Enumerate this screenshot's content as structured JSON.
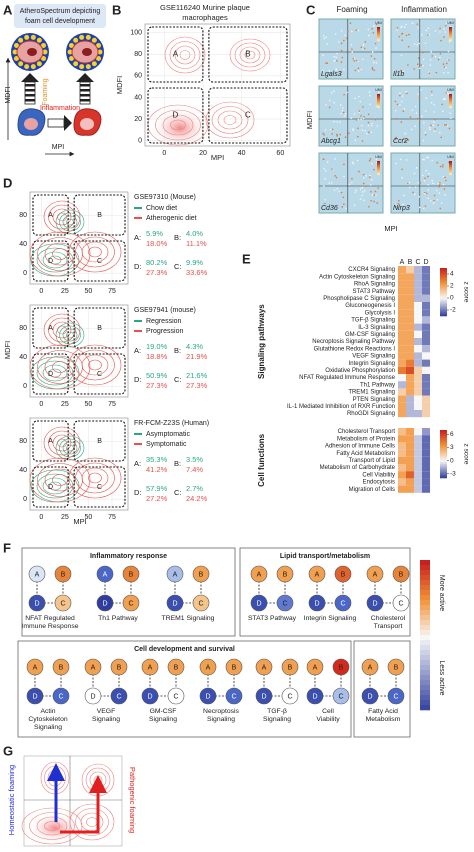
{
  "panel_labels": [
    "A",
    "B",
    "C",
    "D",
    "E",
    "F",
    "G"
  ],
  "a": {
    "title_lines": [
      "AtheroSpectrum depicting",
      "foam cell development"
    ],
    "foaming": "Foaming",
    "inflammation": "Inflammation",
    "y_label": "MDFI",
    "x_label": "MPI"
  },
  "b": {
    "title_lines": [
      "GSE116240 Murine plaque",
      "macrophages"
    ],
    "x_label": "MPI",
    "y_label": "MDFI",
    "xlim": [
      -10,
      65
    ],
    "ylim": [
      -5,
      108
    ],
    "xticks": [
      0,
      20,
      40,
      60
    ],
    "yticks": [
      0,
      20,
      40,
      60,
      80,
      100
    ],
    "quadrants": [
      "A",
      "B",
      "D",
      "C"
    ]
  },
  "c": {
    "columns": [
      "Foaming",
      "Inflammation"
    ],
    "genes": [
      [
        "Lgals3",
        "Il1b"
      ],
      [
        "Abcg1",
        "Ccr2"
      ],
      [
        "Cd36",
        "Nlrp3"
      ]
    ],
    "legend_title": "UMI",
    "y_label": "MDFI",
    "x_label": "MPI"
  },
  "d": {
    "y_label": "MDFI",
    "x_label": "MPI",
    "xlim": [
      -12,
      92
    ],
    "ylim": [
      -15,
      112
    ],
    "xticks": [
      0,
      25,
      50,
      75
    ],
    "yticks": [
      0,
      40,
      80
    ],
    "quadrants": [
      "A",
      "B",
      "D",
      "C"
    ],
    "datasets": [
      {
        "title": "GSE97310 (Mouse)",
        "groups": [
          {
            "name": "Chow diet",
            "color": "#2aa884"
          },
          {
            "name": "Atherogenic diet",
            "color": "#e8504a"
          }
        ],
        "stats": [
          {
            "label": "A:",
            "values": [
              "5.9%",
              "18.0%"
            ]
          },
          {
            "label": "B:",
            "values": [
              "4.0%",
              "11.1%"
            ]
          },
          {
            "label": "D:",
            "values": [
              "80.2%",
              "27.3%"
            ]
          },
          {
            "label": "C:",
            "values": [
              "9.9%",
              "33.6%"
            ]
          }
        ]
      },
      {
        "title": "GSE97941 (mouse)",
        "groups": [
          {
            "name": "Regression",
            "color": "#2aa884"
          },
          {
            "name": "Progression",
            "color": "#e8504a"
          }
        ],
        "stats": [
          {
            "label": "A:",
            "values": [
              "19.0%",
              "18.8%"
            ]
          },
          {
            "label": "B:",
            "values": [
              "4.3%",
              "21.9%"
            ]
          },
          {
            "label": "D:",
            "values": [
              "50.9%",
              "27.3%"
            ]
          },
          {
            "label": "C:",
            "values": [
              "21.6%",
              "27.3%"
            ]
          }
        ]
      },
      {
        "title": "FR-FCM-Z23S (Human)",
        "groups": [
          {
            "name": "Asymptomatic",
            "color": "#2aa884"
          },
          {
            "name": "Symptomatic",
            "color": "#e8504a"
          }
        ],
        "stats": [
          {
            "label": "A:",
            "values": [
              "35.3%",
              "41.2%"
            ]
          },
          {
            "label": "B:",
            "values": [
              "3.5%",
              "7.4%"
            ]
          },
          {
            "label": "D:",
            "values": [
              "57.9%",
              "27.2%"
            ]
          },
          {
            "label": "C:",
            "values": [
              "2.7%",
              "24.2%"
            ]
          }
        ]
      }
    ]
  },
  "e": {
    "columns": [
      "A",
      "B",
      "C",
      "D"
    ],
    "colormap": [
      "#2c3b9c",
      "#f7f7f7",
      "#f39237",
      "#c8201e"
    ],
    "blocks": [
      {
        "y_label": "Signaling pathways",
        "legend_title": "z score",
        "zlim": [
          -3,
          5
        ],
        "zticks": [
          4,
          2,
          0,
          -2
        ],
        "rows": [
          "CXCR4 Signaling",
          "Actin Cytoskeleton Signaling",
          "RhoA Signaling",
          "STAT3 Pathway",
          "Phospholipase C Signaling",
          "Gluconeogenesis I",
          "Glycolysis I",
          "TGF-β Signaling",
          "IL-3 Signaling",
          "GM-CSF Signaling",
          "Necroptosis Signaling Pathway",
          "Glutathione Redox Reactions I",
          "VEGF Signaling",
          "Integrin Signaling",
          "Oxidative Phosphorylation",
          "NFAT Regulated Immune Response",
          "Th1 Pathway",
          "TREM1 Signaling",
          "PTEN Signaling",
          "IL-1 Mediated Inhibition of RXR Function",
          "RhoGDI Signaling"
        ],
        "values": [
          [
            2,
            1,
            -1,
            -2
          ],
          [
            2,
            2,
            -1,
            -2
          ],
          [
            2,
            2,
            -1,
            -2
          ],
          [
            2,
            2,
            -1,
            -2
          ],
          [
            2,
            2,
            -1,
            -1
          ],
          [
            2,
            2,
            0,
            -2
          ],
          [
            2,
            2,
            0,
            -2
          ],
          [
            2,
            2,
            0,
            -1
          ],
          [
            2,
            2,
            -1,
            -2
          ],
          [
            2,
            2,
            0,
            -2
          ],
          [
            2,
            2,
            -1,
            -2
          ],
          [
            2,
            2,
            0,
            -1
          ],
          [
            2,
            2,
            -1,
            0
          ],
          [
            2,
            3,
            -1,
            -2
          ],
          [
            3,
            4,
            1,
            0
          ],
          [
            0,
            2,
            1,
            -2
          ],
          [
            -1,
            2,
            1,
            -2
          ],
          [
            1,
            2,
            1,
            -2
          ],
          [
            2,
            -1,
            0,
            1
          ],
          [
            2,
            -1,
            0,
            1
          ],
          [
            2,
            -1,
            -1,
            1
          ]
        ]
      },
      {
        "y_label": "Cell functions",
        "legend_title": "z score",
        "zlim": [
          -4,
          7
        ],
        "zticks": [
          6,
          3,
          0,
          -3
        ],
        "rows": [
          "Cholesterol Transport",
          "Metabolism of Protein",
          "Adhesion of Immune Cells",
          "Fatty Acid Metabolism",
          "Transport of Lipid",
          "Metabolism of Carbohydrate",
          "Cell Viability",
          "Endocytosis",
          "Migration of Cells"
        ],
        "values": [
          [
            2,
            3,
            0,
            -2
          ],
          [
            3,
            3,
            -1,
            -3
          ],
          [
            2,
            3,
            -1,
            -3
          ],
          [
            2,
            3,
            -1,
            -3
          ],
          [
            3,
            3,
            -1,
            -3
          ],
          [
            2,
            3,
            -1,
            -3
          ],
          [
            3,
            5,
            -1,
            -3
          ],
          [
            2,
            3,
            -1,
            -3
          ],
          [
            3,
            3,
            -1,
            -3
          ]
        ]
      }
    ]
  },
  "f": {
    "node_letters": [
      "A",
      "B",
      "D",
      "C"
    ],
    "legend": {
      "high": "More active",
      "low": "Less active"
    },
    "groups": [
      {
        "title": "Inflammatory response",
        "items": [
          {
            "label": [
              "NFAT Regulated",
              "Immune Response"
            ],
            "colors": [
              "#dbe5f5",
              "#e8843a",
              "#3a4fb0",
              "#f5c48a"
            ]
          },
          {
            "label": [
              "Th1 Pathway"
            ],
            "colors": [
              "#4a66c8",
              "#e8843a",
              "#2f3e9e",
              "#f0a050"
            ]
          },
          {
            "label": [
              "TREM1 Signaling"
            ],
            "colors": [
              "#a8bde8",
              "#f0a050",
              "#3a4fb0",
              "#f5c48a"
            ]
          }
        ]
      },
      {
        "title": "Lipid transport/metabolism",
        "items": [
          {
            "label": [
              "STAT3 Pathway"
            ],
            "colors": [
              "#f0a050",
              "#f0a050",
              "#3a4fb0",
              "#6078d0"
            ]
          },
          {
            "label": [
              "Integrin Signaling"
            ],
            "colors": [
              "#f0a050",
              "#e0632e",
              "#3a4fb0",
              "#4a66c8"
            ]
          },
          {
            "label": [
              "Cholesterol",
              "Transport"
            ],
            "colors": [
              "#f0a050",
              "#e8843a",
              "#3a4fb0",
              "#ffffff"
            ]
          }
        ]
      },
      {
        "title": "Cell development and survival",
        "items": [
          {
            "label": [
              "Actin",
              "Cytoskeleton",
              "Signaling"
            ],
            "colors": [
              "#f0a050",
              "#f0a050",
              "#3a4fb0",
              "#4a66c8"
            ]
          },
          {
            "label": [
              "VEGF",
              "Signaling"
            ],
            "colors": [
              "#f0a050",
              "#f0a050",
              "#ffffff",
              "#3a4fb0"
            ]
          },
          {
            "label": [
              "GM-CSF",
              "Signaling"
            ],
            "colors": [
              "#f0a050",
              "#f0a050",
              "#3a4fb0",
              "#ffffff"
            ]
          },
          {
            "label": [
              "Necroptosis",
              "Signaling"
            ],
            "colors": [
              "#f0a050",
              "#f0a050",
              "#3a4fb0",
              "#4a66c8"
            ]
          },
          {
            "label": [
              "TGF-β",
              "Signaling"
            ],
            "colors": [
              "#f0a050",
              "#f0a050",
              "#3a4fb0",
              "#ffffff"
            ]
          },
          {
            "label": [
              "Cell",
              "Viability"
            ],
            "colors": [
              "#f0a050",
              "#d42a1e",
              "#3a4fb0",
              "#a8bde8"
            ]
          }
        ]
      },
      {
        "items": [
          {
            "label": [
              "Fatty Acid",
              "Metabolism"
            ],
            "colors": [
              "#f0a050",
              "#f0a050",
              "#3a4fb0",
              "#4a66c8"
            ]
          }
        ]
      }
    ]
  },
  "g": {
    "homeostatic": "Homeostatic foaming",
    "pathogenic": "Pathogenic foaming"
  }
}
